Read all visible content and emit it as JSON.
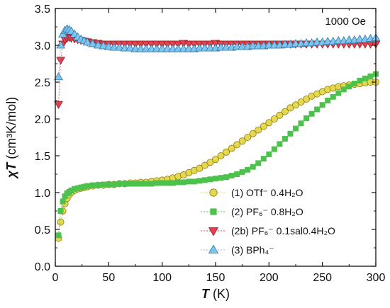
{
  "chart_data": {
    "type": "scatter",
    "xlabel_symbol": "T",
    "xlabel_unit": " (K)",
    "ylabel_symbol": "χT",
    "ylabel_unit": " (cm³K/mol)",
    "annotation": "1000 Oe",
    "xlim": [
      0,
      300
    ],
    "ylim": [
      0,
      3.5
    ],
    "xticks": [
      0,
      50,
      100,
      150,
      200,
      250,
      300
    ],
    "yticks": [
      0.0,
      0.5,
      1.0,
      1.5,
      2.0,
      2.5,
      3.0,
      3.5
    ],
    "legend_position": "bottom-right",
    "grid": false,
    "series": [
      {
        "name": "(1)  OTf⁻ 0.4H₂O",
        "marker": "circle",
        "color": "#e6d84e",
        "stroke": "#8a7d15",
        "x": [
          3,
          5,
          7,
          9,
          11,
          13,
          15,
          18,
          21,
          24,
          27,
          30,
          35,
          40,
          45,
          50,
          55,
          60,
          65,
          70,
          75,
          80,
          85,
          90,
          95,
          100,
          105,
          110,
          115,
          120,
          125,
          130,
          135,
          140,
          145,
          150,
          155,
          160,
          165,
          170,
          175,
          180,
          185,
          190,
          195,
          200,
          205,
          210,
          215,
          220,
          225,
          230,
          235,
          240,
          245,
          250,
          255,
          260,
          265,
          270,
          275,
          280,
          285,
          290,
          295,
          300
        ],
        "y": [
          0.38,
          0.6,
          0.75,
          0.85,
          0.92,
          0.97,
          1.0,
          1.03,
          1.05,
          1.06,
          1.07,
          1.08,
          1.09,
          1.1,
          1.1,
          1.11,
          1.11,
          1.12,
          1.12,
          1.13,
          1.13,
          1.14,
          1.14,
          1.15,
          1.16,
          1.17,
          1.18,
          1.2,
          1.22,
          1.24,
          1.27,
          1.3,
          1.33,
          1.37,
          1.41,
          1.45,
          1.5,
          1.55,
          1.6,
          1.65,
          1.7,
          1.75,
          1.8,
          1.85,
          1.9,
          1.95,
          2.0,
          2.05,
          2.1,
          2.15,
          2.19,
          2.23,
          2.27,
          2.31,
          2.34,
          2.37,
          2.4,
          2.42,
          2.44,
          2.45,
          2.46,
          2.47,
          2.48,
          2.49,
          2.5,
          2.5
        ]
      },
      {
        "name": "(2)  PF₆⁻ 0.8H₂O",
        "marker": "square",
        "color": "#4cc24c",
        "stroke": "#2a8a2a",
        "x": [
          3,
          5,
          7,
          9,
          11,
          13,
          15,
          18,
          21,
          24,
          27,
          30,
          35,
          40,
          45,
          50,
          55,
          60,
          65,
          70,
          75,
          80,
          85,
          90,
          95,
          100,
          105,
          110,
          115,
          120,
          125,
          130,
          135,
          140,
          145,
          150,
          155,
          160,
          165,
          170,
          175,
          180,
          185,
          190,
          195,
          200,
          205,
          210,
          215,
          220,
          225,
          230,
          235,
          240,
          245,
          250,
          255,
          260,
          265,
          270,
          275,
          280,
          285,
          290,
          295,
          300
        ],
        "y": [
          0.42,
          0.75,
          0.88,
          0.95,
          0.99,
          1.01,
          1.03,
          1.05,
          1.06,
          1.07,
          1.08,
          1.09,
          1.1,
          1.1,
          1.11,
          1.11,
          1.11,
          1.12,
          1.12,
          1.12,
          1.12,
          1.12,
          1.12,
          1.12,
          1.13,
          1.13,
          1.13,
          1.13,
          1.14,
          1.14,
          1.15,
          1.15,
          1.16,
          1.17,
          1.18,
          1.19,
          1.2,
          1.21,
          1.23,
          1.25,
          1.28,
          1.31,
          1.35,
          1.4,
          1.46,
          1.52,
          1.59,
          1.66,
          1.73,
          1.8,
          1.87,
          1.94,
          2.01,
          2.07,
          2.13,
          2.19,
          2.25,
          2.3,
          2.35,
          2.4,
          2.44,
          2.48,
          2.52,
          2.55,
          2.58,
          2.61
        ]
      },
      {
        "name": "(2b)  PF₆⁻ 0.1sal0.4H₂O",
        "marker": "triangle-down",
        "color": "#e2424e",
        "stroke": "#9a1c26",
        "x": [
          3,
          5,
          7,
          9,
          11,
          13,
          15,
          18,
          21,
          24,
          27,
          30,
          35,
          40,
          45,
          50,
          55,
          60,
          65,
          70,
          75,
          80,
          85,
          90,
          95,
          100,
          105,
          110,
          115,
          120,
          125,
          130,
          135,
          140,
          145,
          150,
          155,
          160,
          165,
          170,
          175,
          180,
          185,
          190,
          195,
          200,
          205,
          210,
          215,
          220,
          225,
          230,
          235,
          240,
          245,
          250,
          255,
          260,
          265,
          270,
          275,
          280,
          285,
          290,
          295,
          300
        ],
        "y": [
          2.2,
          2.8,
          3.02,
          3.08,
          3.1,
          3.11,
          3.1,
          3.09,
          3.08,
          3.07,
          3.06,
          3.05,
          3.04,
          3.03,
          3.02,
          3.02,
          3.02,
          3.02,
          3.02,
          3.02,
          3.02,
          3.02,
          3.02,
          3.02,
          3.02,
          3.02,
          3.02,
          3.02,
          3.02,
          3.03,
          3.02,
          3.02,
          3.02,
          3.02,
          3.02,
          3.03,
          3.02,
          3.02,
          3.02,
          3.02,
          3.02,
          3.02,
          3.02,
          3.02,
          3.02,
          3.02,
          3.02,
          3.02,
          3.02,
          3.02,
          3.02,
          3.02,
          3.02,
          3.02,
          3.02,
          3.02,
          3.02,
          3.02,
          3.02,
          3.02,
          3.02,
          3.02,
          3.02,
          3.02,
          3.02,
          3.02
        ]
      },
      {
        "name": "(3)  BPh₄⁻",
        "marker": "triangle-up",
        "color": "#7fc4ec",
        "stroke": "#2d7ab0",
        "x": [
          3,
          5,
          7,
          9,
          11,
          13,
          15,
          18,
          21,
          24,
          27,
          30,
          35,
          40,
          45,
          50,
          55,
          60,
          65,
          70,
          75,
          80,
          85,
          90,
          95,
          100,
          105,
          110,
          115,
          120,
          125,
          130,
          135,
          140,
          145,
          150,
          155,
          160,
          165,
          170,
          175,
          180,
          185,
          190,
          195,
          200,
          205,
          210,
          215,
          220,
          225,
          230,
          235,
          240,
          245,
          250,
          255,
          260,
          265,
          270,
          275,
          280,
          285,
          290,
          295,
          300
        ],
        "y": [
          2.57,
          3.0,
          3.15,
          3.2,
          3.22,
          3.21,
          3.19,
          3.15,
          3.11,
          3.08,
          3.06,
          3.04,
          3.02,
          3.0,
          2.99,
          2.98,
          2.97,
          2.97,
          2.96,
          2.96,
          2.95,
          2.95,
          2.95,
          2.95,
          2.95,
          2.95,
          2.95,
          2.95,
          2.95,
          2.95,
          2.95,
          2.95,
          2.96,
          2.96,
          2.96,
          2.96,
          2.97,
          2.97,
          2.97,
          2.98,
          2.98,
          2.98,
          2.99,
          2.99,
          2.99,
          3.0,
          3.0,
          3.0,
          3.01,
          3.01,
          3.02,
          3.02,
          3.03,
          3.03,
          3.04,
          3.04,
          3.05,
          3.05,
          3.06,
          3.06,
          3.07,
          3.07,
          3.08,
          3.08,
          3.09,
          3.1
        ]
      }
    ]
  }
}
